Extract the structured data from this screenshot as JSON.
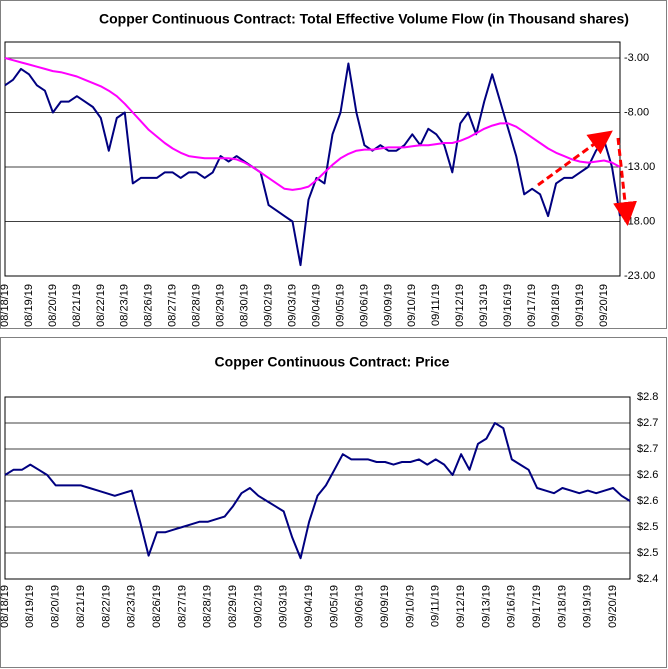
{
  "chart_data": [
    {
      "type": "line",
      "title": "Copper Continuous Contract: Total Effective Volume Flow (in Thousand shares)",
      "categories": [
        "08/18/19",
        null,
        null,
        "08/19/19",
        null,
        null,
        "08/20/19",
        null,
        null,
        "08/21/19",
        null,
        null,
        "08/22/19",
        null,
        null,
        "08/23/19",
        null,
        null,
        "08/26/19",
        null,
        null,
        "08/27/19",
        null,
        null,
        "08/28/19",
        null,
        null,
        "08/29/19",
        null,
        null,
        "08/30/19",
        null,
        null,
        "09/02/19",
        null,
        null,
        "09/03/19",
        null,
        null,
        "09/04/19",
        null,
        null,
        "09/05/19",
        null,
        null,
        "09/06/19",
        null,
        null,
        "09/09/19",
        null,
        null,
        "09/10/19",
        null,
        null,
        "09/11/19",
        null,
        null,
        "09/12/19",
        null,
        null,
        "09/13/19",
        null,
        null,
        "09/16/19",
        null,
        null,
        "09/17/19",
        null,
        null,
        "09/18/19",
        null,
        null,
        "09/19/19",
        null,
        null,
        "09/20/19",
        null,
        null
      ],
      "series": [
        {
          "color": "#000080",
          "values": [
            -5.5,
            -5,
            -4,
            -4.5,
            -5.5,
            -6,
            -8,
            -7,
            -7,
            -6.5,
            -7,
            -7.5,
            -8.5,
            -11.5,
            -8.5,
            -8,
            -14.5,
            -14,
            -14,
            -14,
            -13.5,
            -13.5,
            -14,
            -13.5,
            -13.5,
            -14,
            -13.5,
            -12,
            -12.5,
            -12,
            -12.5,
            -13,
            -13.5,
            -16.5,
            -17,
            -17.5,
            -18,
            -22,
            -16,
            -14,
            -14.5,
            -10,
            -8,
            -3.5,
            -8,
            -11,
            -11.5,
            -11,
            -11.5,
            -11.5,
            -11,
            -10,
            -11,
            -9.5,
            -10,
            -11,
            -13.5,
            -9,
            -8,
            -10,
            -7,
            -4.5,
            -7,
            -9.5,
            -12,
            -15.5,
            -15,
            -15.5,
            -17.5,
            -14.5,
            -14,
            -14,
            -13.5,
            -13,
            -11.5,
            -10.5,
            -13,
            -17.5
          ]
        },
        {
          "color": "#ff00ff",
          "values": [
            -3,
            -3.2,
            -3.4,
            -3.6,
            -3.8,
            -4,
            -4.2,
            -4.3,
            -4.5,
            -4.7,
            -5,
            -5.3,
            -5.6,
            -6,
            -6.5,
            -7.2,
            -8,
            -8.8,
            -9.6,
            -10.2,
            -10.8,
            -11.3,
            -11.7,
            -12,
            -12.1,
            -12.2,
            -12.2,
            -12.2,
            -12.2,
            -12.3,
            -12.6,
            -13,
            -13.5,
            -14,
            -14.5,
            -15,
            -15.1,
            -15,
            -14.8,
            -14.2,
            -13.5,
            -12.8,
            -12.2,
            -11.8,
            -11.5,
            -11.4,
            -11.4,
            -11.3,
            -11.2,
            -11.2,
            -11.2,
            -11.1,
            -11,
            -11,
            -10.9,
            -10.8,
            -10.8,
            -10.6,
            -10.3,
            -9.9,
            -9.5,
            -9.2,
            -9,
            -9,
            -9.3,
            -9.8,
            -10.3,
            -10.8,
            -11.3,
            -11.7,
            -12,
            -12.3,
            -12.5,
            -12.6,
            -12.5,
            -12.4,
            -12.6,
            -13
          ]
        }
      ],
      "ylim": [
        -23,
        -3
      ],
      "yticks": [
        {
          "value": -3,
          "label": "-3.00"
        },
        {
          "value": -8,
          "label": "-8.00"
        },
        {
          "value": -13,
          "label": "-13.00"
        },
        {
          "value": -18,
          "label": "-18.00"
        },
        {
          "value": -23,
          "label": "-23.00"
        }
      ],
      "grid": true
    },
    {
      "type": "line",
      "title": "Copper Continuous Contract: Price",
      "categories": [
        "08/18/19",
        null,
        null,
        "08/19/19",
        null,
        null,
        "08/20/19",
        null,
        null,
        "08/21/19",
        null,
        null,
        "08/22/19",
        null,
        null,
        "08/23/19",
        null,
        null,
        "08/26/19",
        null,
        null,
        "08/27/19",
        null,
        null,
        "08/28/19",
        null,
        null,
        "08/29/19",
        null,
        null,
        "09/02/19",
        null,
        null,
        "09/03/19",
        null,
        null,
        "09/04/19",
        null,
        null,
        "09/05/19",
        null,
        null,
        "09/06/19",
        null,
        null,
        "09/09/19",
        null,
        null,
        "09/10/19",
        null,
        null,
        "09/11/19",
        null,
        null,
        "09/12/19",
        null,
        null,
        "09/13/19",
        null,
        null,
        "09/16/19",
        null,
        null,
        "09/17/19",
        null,
        null,
        "09/18/19",
        null,
        null,
        "09/19/19",
        null,
        null,
        "09/20/19",
        null,
        null
      ],
      "series": [
        {
          "color": "#000080",
          "values": [
            2.6,
            2.61,
            2.61,
            2.62,
            2.61,
            2.6,
            2.58,
            2.58,
            2.58,
            2.58,
            2.575,
            2.57,
            2.565,
            2.56,
            2.565,
            2.57,
            2.51,
            2.445,
            2.49,
            2.49,
            2.495,
            2.5,
            2.505,
            2.51,
            2.51,
            2.515,
            2.52,
            2.54,
            2.565,
            2.575,
            2.56,
            2.55,
            2.54,
            2.53,
            2.48,
            2.44,
            2.51,
            2.56,
            2.58,
            2.61,
            2.64,
            2.63,
            2.63,
            2.63,
            2.625,
            2.625,
            2.62,
            2.625,
            2.625,
            2.63,
            2.62,
            2.63,
            2.62,
            2.6,
            2.64,
            2.61,
            2.66,
            2.67,
            2.7,
            2.69,
            2.63,
            2.62,
            2.61,
            2.575,
            2.57,
            2.565,
            2.575,
            2.57,
            2.565,
            2.57,
            2.565,
            2.57,
            2.575,
            2.56,
            2.55
          ]
        }
      ],
      "ylim": [
        2.4,
        2.75
      ],
      "yticks": [
        {
          "value": 2.4,
          "label": "$2.4"
        },
        {
          "value": 2.45,
          "label": "$2.5"
        },
        {
          "value": 2.5,
          "label": "$2.5"
        },
        {
          "value": 2.55,
          "label": "$2.6"
        },
        {
          "value": 2.6,
          "label": "$2.6"
        },
        {
          "value": 2.65,
          "label": "$2.7"
        },
        {
          "value": 2.7,
          "label": "$2.7"
        },
        {
          "value": 2.75,
          "label": "$2.8"
        }
      ],
      "grid": true
    }
  ]
}
